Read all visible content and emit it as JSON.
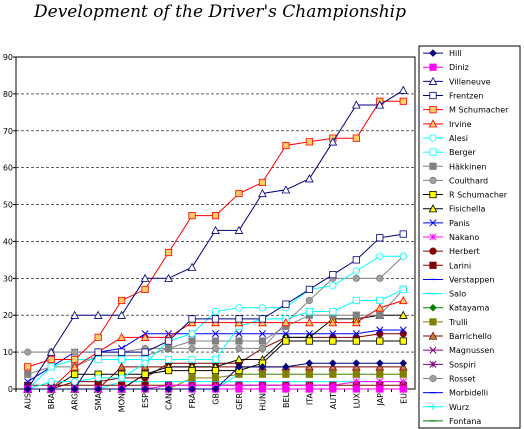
{
  "chart_data": {
    "type": "line",
    "title": "Development of the Driver's Championship",
    "xlabel": "",
    "ylabel": "",
    "categories": [
      "AUS",
      "BRA",
      "ARG",
      "SMA",
      "MON",
      "ESP",
      "CAN",
      "FRA",
      "GB",
      "GER",
      "HUN",
      "BEL",
      "ITA",
      "AUT",
      "LUX",
      "JAP",
      "EU"
    ],
    "ylim": [
      0,
      90
    ],
    "yticks": [
      0,
      10,
      20,
      30,
      40,
      50,
      60,
      70,
      80,
      90
    ],
    "grid": "dashed-horizontal",
    "legend_position": "right",
    "series": [
      {
        "name": "Hill",
        "color": "#000080",
        "marker": "diamond",
        "values": [
          0,
          0,
          0,
          0,
          0,
          0,
          0,
          0,
          0,
          6,
          6,
          6,
          7,
          7,
          7,
          7,
          7
        ]
      },
      {
        "name": "Diniz",
        "color": "#ff00ff",
        "marker": "square",
        "values": [
          0,
          0,
          0,
          0,
          0,
          0,
          0,
          0,
          0,
          0,
          0,
          0,
          0,
          0,
          0,
          0,
          0
        ]
      },
      {
        "name": "Villeneuve",
        "color": "#000080",
        "marker": "triangle-open",
        "values": [
          0,
          10,
          20,
          20,
          20,
          30,
          30,
          33,
          43,
          43,
          53,
          54,
          57,
          67,
          77,
          77,
          81
        ]
      },
      {
        "name": "Frentzen",
        "color": "#000080",
        "marker": "square-open",
        "values": [
          0,
          0,
          0,
          10,
          10,
          10,
          13,
          19,
          19,
          19,
          19,
          23,
          27,
          31,
          35,
          41,
          42
        ]
      },
      {
        "name": "M Schumacher",
        "color": "#ff0000",
        "marker": "square-orange",
        "values": [
          6,
          8,
          8,
          14,
          24,
          27,
          37,
          47,
          47,
          53,
          56,
          66,
          67,
          68,
          68,
          78,
          78
        ]
      },
      {
        "name": "Irvine",
        "color": "#ff0000",
        "marker": "triangle-orange",
        "values": [
          0,
          0,
          6,
          10,
          14,
          14,
          14,
          18,
          18,
          18,
          18,
          18,
          18,
          18,
          18,
          22,
          24
        ]
      },
      {
        "name": "Alesi",
        "color": "#00ffff",
        "marker": "circle-open",
        "values": [
          0,
          2,
          2,
          3,
          3,
          7,
          13,
          15,
          21,
          22,
          22,
          22,
          27,
          28,
          32,
          36,
          36
        ]
      },
      {
        "name": "Berger",
        "color": "#00ffff",
        "marker": "square-open-cyan",
        "values": [
          0,
          6,
          8,
          8,
          8,
          8,
          8,
          8,
          8,
          17,
          19,
          19,
          21,
          21,
          24,
          24,
          27
        ]
      },
      {
        "name": "Häkkinen",
        "color": "#808080",
        "marker": "square-gray",
        "values": [
          4,
          6,
          6,
          9,
          9,
          9,
          11,
          13,
          13,
          13,
          13,
          17,
          20,
          20,
          20,
          20,
          27
        ]
      },
      {
        "name": "Coulthard",
        "color": "#808080",
        "marker": "circle-gray",
        "values": [
          10,
          10,
          10,
          10,
          10,
          11,
          11,
          11,
          11,
          11,
          11,
          18,
          24,
          30,
          30,
          30,
          36
        ]
      },
      {
        "name": "R Schumacher",
        "color": "#000000",
        "marker": "square-yellow",
        "values": [
          0,
          0,
          4,
          4,
          4,
          4,
          5,
          5,
          5,
          5,
          7,
          13,
          13,
          13,
          13,
          13,
          13
        ]
      },
      {
        "name": "Fisichella",
        "color": "#000000",
        "marker": "triangle-yellow",
        "values": [
          0,
          0,
          0,
          0,
          0,
          4,
          6,
          6,
          6,
          8,
          8,
          14,
          14,
          19,
          19,
          20,
          20
        ]
      },
      {
        "name": "Panis",
        "color": "#0000ff",
        "marker": "x",
        "values": [
          2,
          6,
          10,
          10,
          11,
          15,
          15,
          15,
          15,
          15,
          15,
          15,
          15,
          15,
          15,
          16,
          16
        ]
      },
      {
        "name": "Nakano",
        "color": "#ff00ff",
        "marker": "asterisk",
        "values": [
          0,
          0,
          0,
          0,
          0,
          0,
          1,
          1,
          1,
          1,
          1,
          1,
          1,
          1,
          2,
          2,
          2
        ]
      },
      {
        "name": "Herbert",
        "color": "#800000",
        "marker": "circle-dark",
        "values": [
          0,
          0,
          2,
          2,
          3,
          3,
          7,
          7,
          7,
          7,
          11,
          14,
          14,
          14,
          14,
          15,
          15
        ]
      },
      {
        "name": "Larini",
        "color": "#800000",
        "marker": "square-dark",
        "values": [
          1,
          1,
          1,
          1,
          1,
          1,
          1,
          1,
          1,
          1,
          1,
          1,
          1,
          1,
          1,
          1,
          1
        ]
      },
      {
        "name": "Verstappen",
        "color": "#0000ff",
        "marker": "dash",
        "values": [
          0,
          0,
          0,
          0,
          0,
          0,
          0,
          0,
          0,
          0,
          0,
          0,
          0,
          0,
          0,
          0,
          0
        ]
      },
      {
        "name": "Salo",
        "color": "#00ffff",
        "marker": "dash",
        "values": [
          0,
          0,
          0,
          0,
          2,
          2,
          2,
          2,
          2,
          2,
          2,
          2,
          2,
          2,
          2,
          2,
          2
        ]
      },
      {
        "name": "Katayama",
        "color": "#008000",
        "marker": "diamond-green",
        "values": [
          0,
          0,
          0,
          0,
          0,
          0,
          0,
          0,
          0,
          0,
          0,
          0,
          0,
          0,
          0,
          0,
          0
        ]
      },
      {
        "name": "Trulli",
        "color": "#808000",
        "marker": "square-olive",
        "values": [
          0,
          0,
          0,
          0,
          0,
          0,
          0,
          3,
          3,
          4,
          4,
          4,
          4,
          4,
          4,
          4,
          4
        ]
      },
      {
        "name": "Barrichello",
        "color": "#800000",
        "marker": "triangle-brown",
        "values": [
          0,
          0,
          0,
          0,
          6,
          6,
          6,
          6,
          6,
          6,
          6,
          6,
          6,
          6,
          6,
          6,
          6
        ]
      },
      {
        "name": "Magnussen",
        "color": "#800080",
        "marker": "x-purple",
        "values": [
          0,
          0,
          0,
          0,
          0,
          0,
          0,
          0,
          0,
          0,
          0,
          0,
          0,
          0,
          0,
          0,
          0
        ]
      },
      {
        "name": "Sospiri",
        "color": "#800080",
        "marker": "asterisk-purple",
        "values": [
          0,
          0,
          0,
          0,
          0,
          0,
          0,
          0,
          0,
          0,
          0,
          0,
          0,
          0,
          0,
          0,
          0
        ]
      },
      {
        "name": "Rosset",
        "color": "#808080",
        "marker": "circle-gray",
        "values": [
          0,
          0,
          0,
          0,
          0,
          0,
          0,
          0,
          0,
          0,
          0,
          0,
          0,
          0,
          0,
          0,
          0
        ]
      },
      {
        "name": "Morbidelli",
        "color": "#0000ff",
        "marker": "dash",
        "values": [
          0,
          0,
          0,
          0,
          0,
          0,
          0,
          0,
          0,
          0,
          0,
          0,
          0,
          0,
          0,
          0,
          0
        ]
      },
      {
        "name": "Wurz",
        "color": "#00ffff",
        "marker": "plus",
        "values": [
          0,
          0,
          0,
          0,
          0,
          0,
          0,
          0,
          0,
          4,
          4,
          4,
          4,
          4,
          4,
          4,
          4
        ]
      },
      {
        "name": "Fontana",
        "color": "#008000",
        "marker": "dash",
        "values": [
          0,
          0,
          0,
          0,
          0,
          0,
          0,
          0,
          0,
          0,
          0,
          0,
          0,
          0,
          0,
          0,
          0
        ]
      }
    ]
  }
}
